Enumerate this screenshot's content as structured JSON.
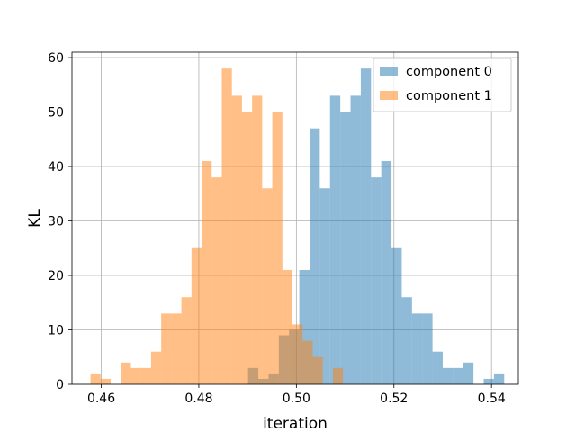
{
  "chart_data": {
    "type": "bar",
    "subtype": "overlapping-histogram",
    "title": "",
    "xlabel": "iteration",
    "ylabel": "KL",
    "xlim": [
      0.454,
      0.5455
    ],
    "ylim": [
      0,
      61
    ],
    "xticks": [
      0.46,
      0.48,
      0.5,
      0.52,
      0.54
    ],
    "xtick_labels": [
      "0.46",
      "0.48",
      "0.50",
      "0.52",
      "0.54"
    ],
    "yticks": [
      0,
      10,
      20,
      30,
      40,
      50,
      60
    ],
    "ytick_labels": [
      "0",
      "10",
      "20",
      "30",
      "40",
      "50",
      "60"
    ],
    "grid": true,
    "legend_position": "top-right",
    "series": [
      {
        "name": "component 0",
        "color": "#1f77b4",
        "alpha": 0.5,
        "bin_start": 0.5,
        "bin_width": 0.0021,
        "first_bin_left": 0.4901,
        "values": [
          3,
          1,
          2,
          9,
          10,
          21,
          47,
          36,
          53,
          50,
          53,
          58,
          38,
          41,
          25,
          16,
          13,
          13,
          6,
          3,
          3,
          4,
          0,
          1,
          2
        ]
      },
      {
        "name": "component 1",
        "color": "#ff7f0e",
        "alpha": 0.5,
        "first_bin_left": 0.4578,
        "bin_width": 0.00207,
        "values": [
          2,
          1,
          0,
          4,
          3,
          3,
          6,
          13,
          13,
          16,
          25,
          41,
          38,
          58,
          53,
          50,
          53,
          36,
          50,
          21,
          11,
          8,
          5,
          0,
          3
        ]
      }
    ]
  }
}
